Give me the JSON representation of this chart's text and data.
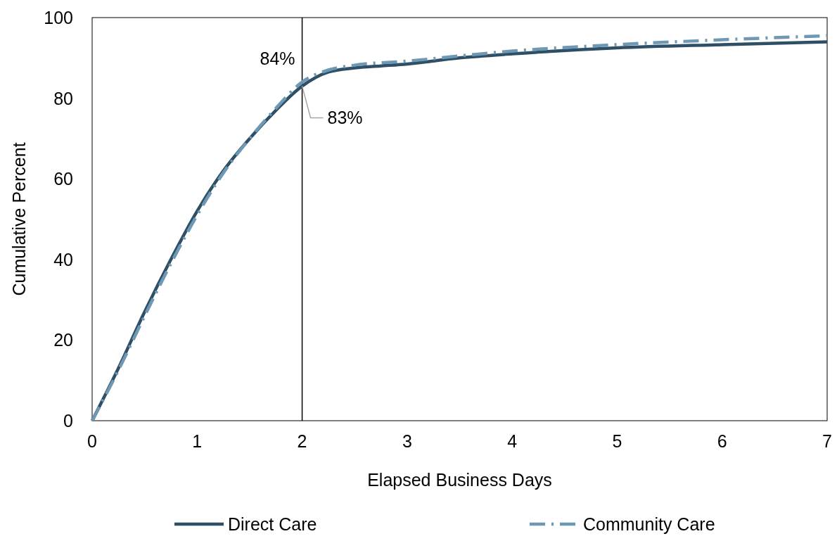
{
  "chart_data": {
    "type": "line",
    "xlabel": "Elapsed Business Days",
    "ylabel": "Cumulative Percent",
    "xlim": [
      0,
      7
    ],
    "xticks": [
      0,
      1,
      2,
      3,
      4,
      5,
      6,
      7
    ],
    "ylim": [
      0,
      100
    ],
    "yticks": [
      0,
      20,
      40,
      60,
      80,
      100
    ],
    "grid": false,
    "legend": "bottom",
    "marker": "none",
    "series": [
      {
        "name": "Direct Care",
        "color": "#2e4f66",
        "line_style": "solid",
        "x": [
          0,
          0.25,
          0.5,
          0.75,
          1,
          1.25,
          1.5,
          1.75,
          2,
          2.25,
          2.5,
          2.75,
          3,
          3.5,
          4,
          5,
          6,
          7
        ],
        "values": [
          0,
          13,
          27,
          40,
          52,
          62,
          70,
          77,
          83,
          86.5,
          87.5,
          88,
          88.5,
          90,
          91,
          92.5,
          93.3,
          94
        ]
      },
      {
        "name": "Community Care",
        "color": "#6f98b4",
        "line_style": "dashdot",
        "x": [
          0,
          0.25,
          0.5,
          0.75,
          1,
          1.25,
          1.5,
          1.75,
          2,
          2.25,
          2.5,
          3,
          3.5,
          4,
          5,
          6,
          7
        ],
        "values": [
          0,
          12.5,
          26,
          39,
          51,
          61.5,
          70,
          77.5,
          84,
          87,
          88.2,
          89.2,
          90.5,
          91.7,
          93.3,
          94.5,
          95.5
        ]
      }
    ],
    "ref_lines": [
      {
        "axis": "x",
        "value": 2,
        "color": "#000000",
        "line_style": "solid"
      }
    ],
    "annotations": [
      {
        "text": "84%",
        "x": 2,
        "y": 84
      },
      {
        "text": "83%",
        "x": 2,
        "y": 83
      }
    ]
  }
}
